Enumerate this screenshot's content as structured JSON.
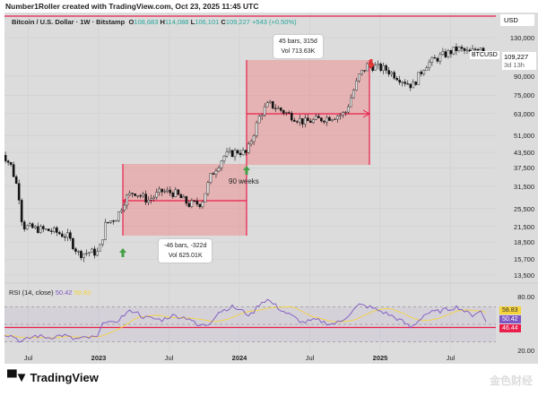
{
  "credit": "Number1Roller created with TradingView.com, Oct 23, 2025 11:45 UTC",
  "legend": {
    "title": "Bitcoin / U.S. Dollar · 1W · Bitstamp",
    "o_label": "O",
    "o": "108,683",
    "h_label": "H",
    "h": "114,088",
    "l_label": "L",
    "l": "106,101",
    "c_label": "C",
    "c": "109,227",
    "change": "+543 (+0.50%)"
  },
  "currency": "USD",
  "price_axis": [
    "130,000",
    "90,000",
    "75,000",
    "63,000",
    "51,000",
    "43,500",
    "37,500",
    "31,500",
    "25,500",
    "21,500",
    "18,500",
    "15,700",
    "13,500"
  ],
  "last_price": {
    "value": "109,227",
    "countdown": "3d 13h",
    "symbol": "BTCUSD"
  },
  "rsi": {
    "label": "RSI (14, close)",
    "value": "50.42",
    "ma": "58.83",
    "axis": [
      "80.00",
      "20.00"
    ],
    "tags": {
      "ma": "58.83",
      "rsi": "50.42",
      "line": "46.44"
    },
    "colors": {
      "rsi": "#7e57c2",
      "ma": "#f5d33c",
      "line": "#e91e4b"
    }
  },
  "time_axis": [
    "Jul",
    "2023",
    "Jul",
    "2024",
    "Jul",
    "2025",
    "Jul"
  ],
  "annotations": {
    "box1": {
      "line1": "-46 bars, -322d",
      "line2": "Vol 625.01K"
    },
    "box2": {
      "line1": "45 bars, 315d",
      "line2": "Vol 713.63K"
    },
    "weeks": "90 weeks"
  },
  "footer": {
    "brand": "TradingView",
    "watermark": "金色财经"
  },
  "colors": {
    "up": "#e8e8e8",
    "down": "#111111",
    "accent": "#e91e4b",
    "box": "#f08080",
    "arrow_up": "#43a047",
    "arrow_down": "#e53935"
  },
  "chart_data": {
    "type": "candlestick",
    "symbol": "BTCUSD",
    "interval": "1W",
    "scale": "log",
    "price_keyframes": [
      [
        2022.3,
        45000
      ],
      [
        2022.38,
        38000
      ],
      [
        2022.43,
        30000
      ],
      [
        2022.46,
        21500
      ],
      [
        2022.55,
        21000
      ],
      [
        2022.68,
        20500
      ],
      [
        2022.78,
        19500
      ],
      [
        2022.86,
        16500
      ],
      [
        2022.94,
        16800
      ],
      [
        2023.0,
        16700
      ],
      [
        2023.05,
        22000
      ],
      [
        2023.13,
        23500
      ],
      [
        2023.19,
        28000
      ],
      [
        2023.25,
        30000
      ],
      [
        2023.35,
        27500
      ],
      [
        2023.45,
        30000
      ],
      [
        2023.54,
        29500
      ],
      [
        2023.64,
        26500
      ],
      [
        2023.73,
        26800
      ],
      [
        2023.8,
        35000
      ],
      [
        2023.89,
        42000
      ],
      [
        2023.99,
        44000
      ],
      [
        2024.05,
        43000
      ],
      [
        2024.15,
        63000
      ],
      [
        2024.21,
        69000
      ],
      [
        2024.34,
        63000
      ],
      [
        2024.46,
        58000
      ],
      [
        2024.59,
        60000
      ],
      [
        2024.75,
        63000
      ],
      [
        2024.85,
        90000
      ],
      [
        2024.91,
        100000
      ],
      [
        2025.04,
        96000
      ],
      [
        2025.17,
        86000
      ],
      [
        2025.23,
        82000
      ],
      [
        2025.32,
        100000
      ],
      [
        2025.42,
        108000
      ],
      [
        2025.55,
        117000
      ],
      [
        2025.64,
        112000
      ],
      [
        2025.71,
        121000
      ],
      [
        2025.76,
        109227
      ]
    ],
    "rsi_keyframes": [
      [
        2022.3,
        40
      ],
      [
        2022.4,
        36
      ],
      [
        2022.45,
        30
      ],
      [
        2022.55,
        37
      ],
      [
        2022.65,
        35
      ],
      [
        2022.75,
        38
      ],
      [
        2022.82,
        33
      ],
      [
        2022.95,
        35
      ],
      [
        2023.0,
        35
      ],
      [
        2023.03,
        55
      ],
      [
        2023.1,
        50
      ],
      [
        2023.2,
        63
      ],
      [
        2023.25,
        66
      ],
      [
        2023.32,
        58
      ],
      [
        2023.45,
        55
      ],
      [
        2023.52,
        60
      ],
      [
        2023.65,
        57
      ],
      [
        2023.7,
        48
      ],
      [
        2023.78,
        50
      ],
      [
        2023.85,
        64
      ],
      [
        2023.95,
        70
      ],
      [
        2024.02,
        65
      ],
      [
        2024.08,
        60
      ],
      [
        2024.15,
        75
      ],
      [
        2024.2,
        78
      ],
      [
        2024.3,
        66
      ],
      [
        2024.45,
        52
      ],
      [
        2024.55,
        55
      ],
      [
        2024.65,
        50
      ],
      [
        2024.72,
        53
      ],
      [
        2024.85,
        72
      ],
      [
        2024.92,
        70
      ],
      [
        2025.05,
        62
      ],
      [
        2025.15,
        54
      ],
      [
        2025.22,
        46
      ],
      [
        2025.32,
        62
      ],
      [
        2025.45,
        66
      ],
      [
        2025.55,
        70
      ],
      [
        2025.65,
        60
      ],
      [
        2025.71,
        66
      ],
      [
        2025.76,
        50.42
      ]
    ]
  }
}
